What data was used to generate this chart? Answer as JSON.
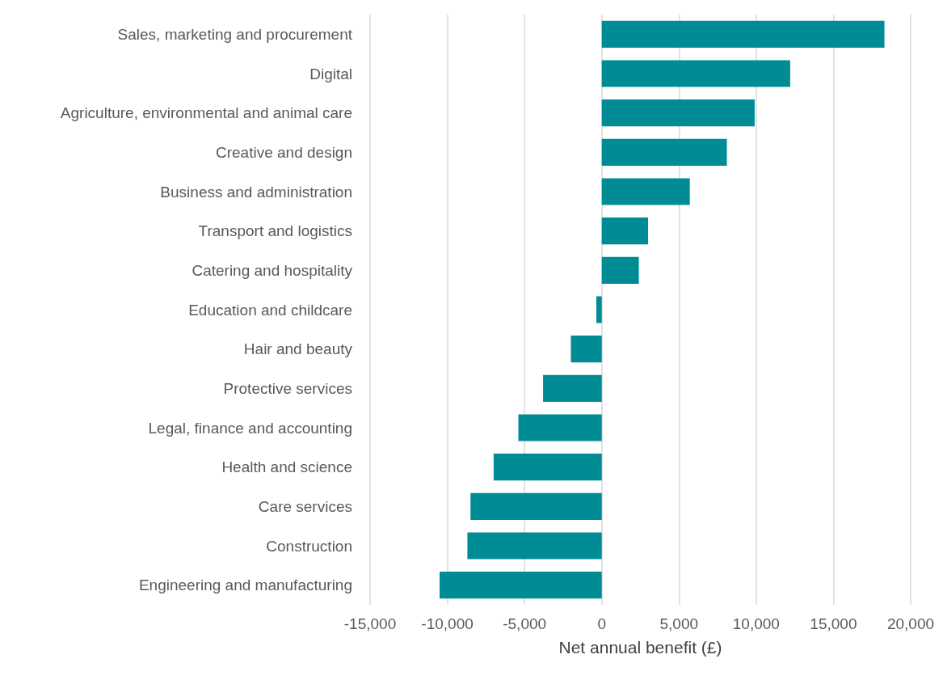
{
  "chart_data": {
    "type": "bar",
    "orientation": "horizontal",
    "xlabel": "Net annual benefit (£)",
    "categories": [
      "Sales, marketing and procurement",
      "Digital",
      "Agriculture, environmental and animal care",
      "Creative and design",
      "Business and administration",
      "Transport and logistics",
      "Catering and hospitality",
      "Education and childcare",
      "Hair and beauty",
      "Protective services",
      "Legal, finance and accounting",
      "Health and science",
      "Care services",
      "Construction",
      "Engineering and manufacturing"
    ],
    "values": [
      18300,
      12200,
      9900,
      8100,
      5700,
      3000,
      2400,
      -350,
      -2000,
      -3800,
      -5400,
      -7000,
      -8500,
      -8700,
      -10500
    ],
    "color": "#008c95",
    "xlim": [
      -15000,
      20000
    ],
    "xticks": [
      {
        "value": -15000,
        "label": "-15,000"
      },
      {
        "value": -10000,
        "label": "-10,000"
      },
      {
        "value": -5000,
        "label": "-5,000"
      },
      0,
      {
        "value": 5000,
        "label": "5,000"
      },
      {
        "value": 10000,
        "label": "10,000"
      },
      {
        "value": 15000,
        "label": "15,000"
      },
      {
        "value": 20000,
        "label": "20,000"
      }
    ],
    "grid": "x"
  }
}
